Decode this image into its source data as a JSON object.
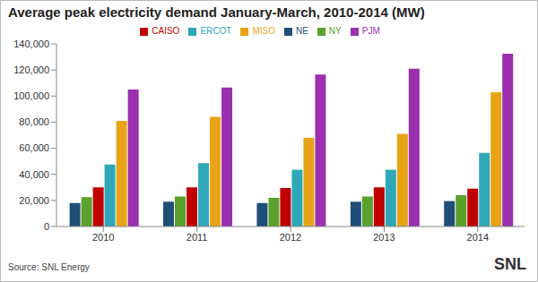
{
  "chart_data": {
    "type": "bar",
    "title": "Average peak electricity demand January-March, 2010-2014 (MW)",
    "source": "Source: SNL Energy",
    "logo": "SNL",
    "categories": [
      "2010",
      "2011",
      "2012",
      "2013",
      "2014"
    ],
    "series": [
      {
        "name": "NE",
        "color": "#1f4e79",
        "values": [
          18000,
          19000,
          18000,
          19000,
          19500
        ]
      },
      {
        "name": "NY",
        "color": "#5aa02c",
        "values": [
          22500,
          23000,
          22000,
          23000,
          24000
        ]
      },
      {
        "name": "CAISO",
        "color": "#c00000",
        "values": [
          30000,
          30000,
          29500,
          30000,
          29000
        ]
      },
      {
        "name": "ERCOT",
        "color": "#2ea8b8",
        "values": [
          47500,
          48500,
          43500,
          43500,
          56500
        ]
      },
      {
        "name": "MISO",
        "color": "#e8a317",
        "values": [
          81000,
          84000,
          68000,
          71000,
          103000
        ]
      },
      {
        "name": "PJM",
        "color": "#9b2fae",
        "values": [
          105000,
          106500,
          116500,
          121000,
          132500
        ]
      }
    ],
    "ylim": [
      0,
      140000
    ],
    "yticks": [
      0,
      {
        "value": 20000,
        "label": "20,000"
      },
      {
        "value": 40000,
        "label": "40,000"
      },
      {
        "value": 60000,
        "label": "60,000"
      },
      {
        "value": 80000,
        "label": "80,000"
      },
      {
        "value": 100000,
        "label": "100,000"
      },
      {
        "value": 120000,
        "label": "120,000"
      },
      {
        "value": 140000,
        "label": "140,000"
      }
    ],
    "grid": false,
    "legend": "top"
  }
}
